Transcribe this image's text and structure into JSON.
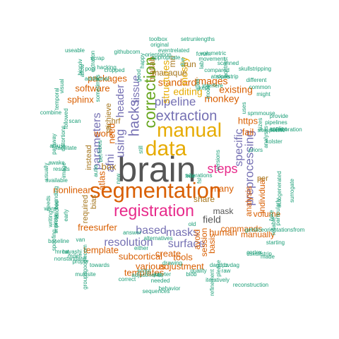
{
  "colors": {
    "grey": "#555555",
    "orange": "#d95f02",
    "purple": "#7570b3",
    "pink": "#e7298a",
    "green": "#66a61e",
    "gold": "#e6ab02",
    "brown": "#a6761d",
    "teal": "#1b9e77"
  },
  "words": [
    {
      "text": "brain",
      "color": "grey"
    },
    {
      "text": "segmentation",
      "color": "orange"
    },
    {
      "text": "registration",
      "color": "pink"
    },
    {
      "text": "manual",
      "color": "gold"
    },
    {
      "text": "data",
      "color": "gold"
    },
    {
      "text": "correction",
      "color": "green"
    },
    {
      "text": "steps",
      "color": "pink"
    },
    {
      "text": "extraction",
      "color": "purple"
    },
    {
      "text": "preprocessing",
      "color": "purple"
    },
    {
      "text": "hacks",
      "color": "purple"
    },
    {
      "text": "using",
      "color": "purple"
    },
    {
      "text": "pipeline",
      "color": "purple"
    },
    {
      "text": "masks",
      "color": "purple"
    },
    {
      "text": "resolution",
      "color": "purple"
    },
    {
      "text": "surface",
      "color": "purple"
    },
    {
      "text": "based",
      "color": "purple"
    },
    {
      "text": "parameters",
      "color": "purple"
    },
    {
      "text": "field",
      "color": "grey"
    },
    {
      "text": "specific",
      "color": "purple"
    },
    {
      "text": "afni",
      "color": "purple"
    },
    {
      "text": "header",
      "color": "purple"
    },
    {
      "text": "tissue",
      "color": "purple"
    },
    {
      "text": "editing",
      "color": "gold"
    },
    {
      "text": "monkey",
      "color": "orange"
    },
    {
      "text": "standard",
      "color": "orange"
    },
    {
      "text": "mostly",
      "color": "gold"
    },
    {
      "text": "images",
      "color": "orange"
    },
    {
      "text": "existing",
      "color": "orange"
    },
    {
      "text": "structures",
      "color": "gold"
    },
    {
      "text": "packages",
      "color": "orange"
    },
    {
      "text": "software",
      "color": "orange"
    },
    {
      "text": "sphinx",
      "color": "orange"
    },
    {
      "text": "work",
      "color": "orange"
    },
    {
      "text": "need",
      "color": "orange"
    },
    {
      "text": "box",
      "color": "brown"
    },
    {
      "text": "atlas",
      "color": "orange"
    },
    {
      "text": "nonlinear",
      "color": "orange"
    },
    {
      "text": "freesurfer",
      "color": "orange"
    },
    {
      "text": "template",
      "color": "orange"
    },
    {
      "text": "subcortical",
      "color": "orange"
    },
    {
      "text": "various",
      "color": "orange"
    },
    {
      "text": "templates",
      "color": "orange"
    },
    {
      "text": "adjustment",
      "color": "orange"
    },
    {
      "text": "create",
      "color": "orange"
    },
    {
      "text": "tools",
      "color": "orange"
    },
    {
      "text": "human",
      "color": "orange"
    },
    {
      "text": "mask",
      "color": "grey"
    },
    {
      "text": "many",
      "color": "orange"
    },
    {
      "text": "https",
      "color": "orange"
    },
    {
      "text": "fail",
      "color": "orange"
    },
    {
      "text": "volume",
      "color": "orange"
    },
    {
      "text": "manually",
      "color": "orange"
    },
    {
      "text": "commands",
      "color": "orange"
    },
    {
      "text": "share",
      "color": "brown"
    },
    {
      "text": "individual",
      "color": "orange"
    },
    {
      "text": "analysis",
      "color": "orange"
    },
    {
      "text": "session",
      "color": "orange"
    },
    {
      "text": "avoid",
      "color": "orange"
    },
    {
      "text": "basis",
      "color": "orange"
    },
    {
      "text": "macaque",
      "color": "brown"
    },
    {
      "text": "mri",
      "color": "brown"
    },
    {
      "text": "run",
      "color": "brown"
    },
    {
      "text": "matlab",
      "color": "brown"
    },
    {
      "text": "hrf",
      "color": "brown"
    },
    {
      "text": "achieve",
      "color": "brown"
    },
    {
      "text": "instead",
      "color": "brown"
    },
    {
      "text": "bias",
      "color": "brown"
    },
    {
      "text": "required",
      "color": "brown"
    },
    {
      "text": "per",
      "color": "brown"
    },
    {
      "text": "epi",
      "color": "brown"
    },
    {
      "text": "toolbox",
      "color": "teal"
    },
    {
      "text": "setrunlengths",
      "color": "teal"
    },
    {
      "text": "original",
      "color": "teal"
    },
    {
      "text": "orientation",
      "color": "teal"
    },
    {
      "text": "useable",
      "color": "teal"
    },
    {
      "text": "githubcom",
      "color": "teal"
    },
    {
      "text": "eventrelated",
      "color": "teal"
    },
    {
      "text": "volumetric",
      "color": "teal"
    },
    {
      "text": "movement",
      "color": "teal"
    },
    {
      "text": "scrap",
      "color": "teal"
    },
    {
      "text": "extration",
      "color": "teal"
    },
    {
      "text": "appropriate",
      "color": "teal"
    },
    {
      "text": "hacking",
      "color": "teal"
    },
    {
      "text": "pool",
      "color": "teal"
    },
    {
      "text": "cropped",
      "color": "teal"
    },
    {
      "text": "scanned",
      "color": "teal"
    },
    {
      "text": "skullstripping",
      "color": "teal"
    },
    {
      "text": "compared",
      "color": "teal"
    },
    {
      "text": "contrast",
      "color": "teal"
    },
    {
      "text": "forum",
      "color": "teal"
    },
    {
      "text": "kept",
      "color": "teal"
    },
    {
      "text": "interfere",
      "color": "teal"
    },
    {
      "text": "atropos",
      "color": "teal"
    },
    {
      "text": "skullstrip",
      "color": "teal"
    },
    {
      "text": "temporal",
      "color": "teal"
    },
    {
      "text": "visual",
      "color": "teal"
    },
    {
      "text": "combine",
      "color": "teal"
    },
    {
      "text": "spmmouse",
      "color": "teal"
    },
    {
      "text": "provide",
      "color": "teal"
    },
    {
      "text": "pipelines",
      "color": "teal"
    },
    {
      "text": "applies",
      "color": "teal"
    },
    {
      "text": "sitespecific",
      "color": "teal"
    },
    {
      "text": "collaboration",
      "color": "teal"
    },
    {
      "text": "kolster",
      "color": "teal"
    },
    {
      "text": "analyses",
      "color": "teal"
    },
    {
      "text": "priors",
      "color": "teal"
    },
    {
      "text": "adjust",
      "color": "teal"
    },
    {
      "text": "facilitate",
      "color": "teal"
    },
    {
      "text": "pathway",
      "color": "teal"
    },
    {
      "text": "awake",
      "color": "teal"
    },
    {
      "text": "results",
      "color": "teal"
    },
    {
      "text": "available",
      "color": "teal"
    },
    {
      "text": "usually",
      "color": "teal"
    },
    {
      "text": "needs",
      "color": "teal"
    },
    {
      "text": "warp",
      "color": "teal"
    },
    {
      "text": "writing",
      "color": "teal"
    },
    {
      "text": "improve",
      "color": "teal"
    },
    {
      "text": "spoofing",
      "color": "teal"
    },
    {
      "text": "baseline",
      "color": "teal"
    },
    {
      "text": "mrcat",
      "color": "teal"
    },
    {
      "text": "hayashi",
      "color": "teal"
    },
    {
      "text": "mdeft",
      "color": "teal"
    },
    {
      "text": "proper",
      "color": "teal"
    },
    {
      "text": "nonstandard",
      "color": "teal"
    },
    {
      "text": "towards",
      "color": "teal"
    },
    {
      "text": "groupsgooglecom",
      "color": "teal"
    },
    {
      "text": "needed",
      "color": "teal"
    },
    {
      "text": "script",
      "color": "teal"
    },
    {
      "text": "sequences",
      "color": "teal"
    },
    {
      "text": "quality",
      "color": "teal"
    },
    {
      "text": "adjustments",
      "color": "teal"
    },
    {
      "text": "behavior",
      "color": "teal"
    },
    {
      "text": "jupyter",
      "color": "teal"
    },
    {
      "text": "blob",
      "color": "teal"
    },
    {
      "text": "drawing",
      "color": "teal"
    },
    {
      "text": "correct",
      "color": "teal"
    },
    {
      "text": "either",
      "color": "teal"
    },
    {
      "text": "alternatives",
      "color": "teal"
    },
    {
      "text": "old",
      "color": "teal"
    },
    {
      "text": "answer",
      "color": "teal"
    },
    {
      "text": "multisite",
      "color": "teal"
    },
    {
      "text": "dagdpz",
      "color": "teal"
    },
    {
      "text": "bvdag",
      "color": "teal"
    },
    {
      "text": "raw",
      "color": "teal"
    },
    {
      "text": "iteratively",
      "color": "teal"
    },
    {
      "text": "please",
      "color": "teal"
    },
    {
      "text": "refinement",
      "color": "teal"
    },
    {
      "text": "reconstruction",
      "color": "teal"
    },
    {
      "text": "starting",
      "color": "teal"
    },
    {
      "text": "made",
      "color": "teal"
    },
    {
      "text": "dskullstrip",
      "color": "teal"
    },
    {
      "text": "cortex",
      "color": "teal"
    },
    {
      "text": "getsliceorientationsfrom",
      "color": "teal"
    },
    {
      "text": "particularly",
      "color": "teal"
    },
    {
      "text": "reliable",
      "color": "teal"
    },
    {
      "text": "surrogate",
      "color": "teal"
    },
    {
      "text": "autogenerated",
      "color": "teal"
    },
    {
      "text": "fake",
      "color": "teal"
    },
    {
      "text": "alterations",
      "color": "teal"
    },
    {
      "text": "free",
      "color": "teal"
    },
    {
      "text": "fsl",
      "color": "teal"
    },
    {
      "text": "still",
      "color": "teal"
    },
    {
      "text": "bet",
      "color": "teal"
    },
    {
      "text": "van",
      "color": "teal"
    },
    {
      "text": "early",
      "color": "teal"
    },
    {
      "text": "scan",
      "color": "teal"
    },
    {
      "text": "image",
      "color": "teal"
    },
    {
      "text": "bounding",
      "color": "teal"
    },
    {
      "text": "followed",
      "color": "teal"
    },
    {
      "text": "distortions",
      "color": "teal"
    },
    {
      "text": "sometimes",
      "color": "teal"
    },
    {
      "text": "additional",
      "color": "teal"
    },
    {
      "text": "happy",
      "color": "teal"
    },
    {
      "text": "due",
      "color": "teal"
    },
    {
      "text": "lab",
      "color": "teal"
    },
    {
      "text": "different",
      "color": "teal"
    },
    {
      "text": "common",
      "color": "teal"
    },
    {
      "text": "might",
      "color": "teal"
    },
    {
      "text": "mode",
      "color": "teal"
    },
    {
      "text": "good",
      "color": "teal"
    },
    {
      "text": "atlas",
      "color": "teal"
    },
    {
      "text": "autio",
      "color": "teal"
    },
    {
      "text": "new",
      "color": "teal"
    },
    {
      "text": "biorxiv",
      "color": "teal"
    },
    {
      "text": "allow",
      "color": "teal"
    },
    {
      "text": "tailored",
      "color": "teal"
    },
    {
      "text": "since",
      "color": "teal"
    },
    {
      "text": "lobes",
      "color": "teal"
    },
    {
      "text": "sizes",
      "color": "teal"
    },
    {
      "text": "uses",
      "color": "teal"
    },
    {
      "text": "versions",
      "color": "teal"
    },
    {
      "text": "dura",
      "color": "teal"
    },
    {
      "text": "sure",
      "color": "teal"
    },
    {
      "text": "way",
      "color": "teal"
    }
  ]
}
